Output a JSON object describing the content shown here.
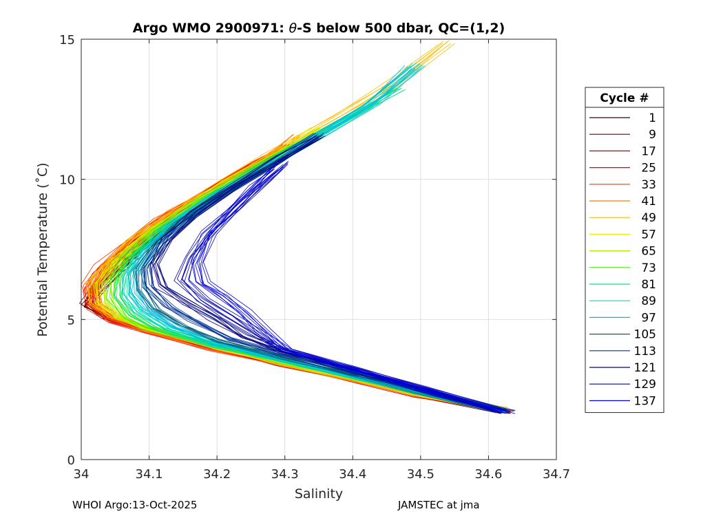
{
  "chart_data": {
    "type": "line",
    "title_prefix": "Argo WMO 2900971: ",
    "title_theta": "θ",
    "title_suffix": "-S below 500 dbar,  QC=(1,2)",
    "xlabel": "Salinity",
    "ylabel": "Potential Temperature (˚C)",
    "xlim": [
      34.0,
      34.7
    ],
    "ylim": [
      0,
      15
    ],
    "xticks": [
      34.0,
      34.1,
      34.2,
      34.3,
      34.4,
      34.5,
      34.6,
      34.7
    ],
    "xtick_labels": [
      "34",
      "34.1",
      "34.2",
      "34.3",
      "34.4",
      "34.5",
      "34.6",
      "34.7"
    ],
    "yticks": [
      0,
      5,
      10,
      15
    ],
    "ytick_labels": [
      "0",
      "5",
      "10",
      "15"
    ],
    "grid": true,
    "legend_title": "Cycle #",
    "legend_position": "right-outside",
    "series": [
      {
        "name": "1",
        "color": "#3a0000",
        "points": [
          [
            34.63,
            1.7
          ],
          [
            34.5,
            2.35
          ],
          [
            34.4,
            2.9
          ],
          [
            34.3,
            3.45
          ],
          [
            34.2,
            4.0
          ],
          [
            34.1,
            4.65
          ],
          [
            34.04,
            5.1
          ],
          [
            34.01,
            5.5
          ],
          [
            34.03,
            6.0
          ],
          [
            34.05,
            6.6
          ],
          [
            34.08,
            7.3
          ],
          [
            34.12,
            8.1
          ],
          [
            34.18,
            9.1
          ],
          [
            34.24,
            10.0
          ],
          [
            34.29,
            10.8
          ]
        ]
      },
      {
        "name": "9",
        "color": "#6a0000",
        "points": [
          [
            34.63,
            1.7
          ],
          [
            34.5,
            2.3
          ],
          [
            34.4,
            2.85
          ],
          [
            34.3,
            3.4
          ],
          [
            34.2,
            3.95
          ],
          [
            34.1,
            4.6
          ],
          [
            34.04,
            5.05
          ],
          [
            34.01,
            5.6
          ],
          [
            34.02,
            6.1
          ],
          [
            34.05,
            6.8
          ],
          [
            34.09,
            7.6
          ],
          [
            34.14,
            8.5
          ],
          [
            34.2,
            9.5
          ],
          [
            34.27,
            10.5
          ],
          [
            34.31,
            11.2
          ]
        ]
      },
      {
        "name": "17",
        "color": "#b40000",
        "points": [
          [
            34.62,
            1.75
          ],
          [
            34.5,
            2.3
          ],
          [
            34.4,
            2.85
          ],
          [
            34.3,
            3.4
          ],
          [
            34.2,
            3.95
          ],
          [
            34.1,
            4.6
          ],
          [
            34.05,
            5.0
          ],
          [
            34.02,
            5.5
          ],
          [
            34.02,
            6.1
          ],
          [
            34.04,
            6.7
          ],
          [
            34.07,
            7.5
          ],
          [
            34.12,
            8.4
          ],
          [
            34.19,
            9.5
          ],
          [
            34.26,
            10.5
          ],
          [
            34.3,
            11.0
          ]
        ]
      },
      {
        "name": "25",
        "color": "#e00000",
        "points": [
          [
            34.62,
            1.75
          ],
          [
            34.5,
            2.28
          ],
          [
            34.4,
            2.83
          ],
          [
            34.3,
            3.38
          ],
          [
            34.2,
            3.93
          ],
          [
            34.1,
            4.58
          ],
          [
            34.05,
            4.95
          ],
          [
            34.02,
            5.4
          ],
          [
            34.01,
            6.0
          ],
          [
            34.03,
            6.6
          ],
          [
            34.06,
            7.4
          ],
          [
            34.11,
            8.3
          ],
          [
            34.18,
            9.4
          ],
          [
            34.25,
            10.4
          ],
          [
            34.3,
            11.1
          ]
        ]
      },
      {
        "name": "33",
        "color": "#ff3300",
        "points": [
          [
            34.62,
            1.8
          ],
          [
            34.5,
            2.3
          ],
          [
            34.4,
            2.85
          ],
          [
            34.3,
            3.4
          ],
          [
            34.2,
            3.95
          ],
          [
            34.1,
            4.6
          ],
          [
            34.05,
            5.0
          ],
          [
            34.02,
            5.5
          ],
          [
            34.01,
            6.2
          ],
          [
            34.03,
            6.9
          ],
          [
            34.07,
            7.7
          ],
          [
            34.12,
            8.6
          ],
          [
            34.19,
            9.6
          ],
          [
            34.26,
            10.6
          ],
          [
            34.31,
            11.3
          ]
        ]
      },
      {
        "name": "41",
        "color": "#ff7700",
        "points": [
          [
            34.62,
            1.8
          ],
          [
            34.5,
            2.32
          ],
          [
            34.4,
            2.87
          ],
          [
            34.3,
            3.42
          ],
          [
            34.2,
            3.97
          ],
          [
            34.1,
            4.62
          ],
          [
            34.05,
            5.0
          ],
          [
            34.02,
            5.5
          ],
          [
            34.02,
            6.2
          ],
          [
            34.04,
            6.9
          ],
          [
            34.08,
            7.8
          ],
          [
            34.14,
            8.8
          ],
          [
            34.21,
            9.8
          ],
          [
            34.28,
            10.8
          ],
          [
            34.32,
            11.6
          ]
        ]
      },
      {
        "name": "49",
        "color": "#ffbb00",
        "points": [
          [
            34.62,
            1.8
          ],
          [
            34.5,
            2.35
          ],
          [
            34.4,
            2.9
          ],
          [
            34.3,
            3.45
          ],
          [
            34.2,
            4.0
          ],
          [
            34.1,
            4.65
          ],
          [
            34.05,
            5.05
          ],
          [
            34.02,
            5.6
          ],
          [
            34.02,
            6.3
          ],
          [
            34.04,
            7.0
          ],
          [
            34.08,
            7.9
          ],
          [
            34.14,
            8.9
          ],
          [
            34.21,
            9.9
          ],
          [
            34.28,
            10.9
          ],
          [
            34.38,
            12.2
          ],
          [
            34.46,
            13.4
          ],
          [
            34.54,
            14.9
          ]
        ]
      },
      {
        "name": "57",
        "color": "#eeee00",
        "points": [
          [
            34.62,
            1.8
          ],
          [
            34.5,
            2.35
          ],
          [
            34.4,
            2.9
          ],
          [
            34.3,
            3.45
          ],
          [
            34.2,
            4.0
          ],
          [
            34.1,
            4.65
          ],
          [
            34.06,
            5.05
          ],
          [
            34.03,
            5.6
          ],
          [
            34.03,
            6.3
          ],
          [
            34.05,
            7.0
          ],
          [
            34.09,
            7.9
          ],
          [
            34.15,
            8.9
          ],
          [
            34.22,
            9.9
          ],
          [
            34.29,
            10.9
          ],
          [
            34.35,
            11.8
          ]
        ]
      },
      {
        "name": "65",
        "color": "#aaee00",
        "points": [
          [
            34.62,
            1.78
          ],
          [
            34.5,
            2.37
          ],
          [
            34.4,
            2.92
          ],
          [
            34.3,
            3.47
          ],
          [
            34.2,
            4.02
          ],
          [
            34.1,
            4.67
          ],
          [
            34.06,
            5.1
          ],
          [
            34.04,
            5.7
          ],
          [
            34.04,
            6.4
          ],
          [
            34.06,
            7.1
          ],
          [
            34.1,
            8.0
          ],
          [
            34.16,
            9.0
          ],
          [
            34.23,
            10.0
          ],
          [
            34.3,
            11.0
          ],
          [
            34.36,
            11.8
          ]
        ]
      },
      {
        "name": "73",
        "color": "#44ee00",
        "points": [
          [
            34.62,
            1.75
          ],
          [
            34.5,
            2.4
          ],
          [
            34.4,
            2.95
          ],
          [
            34.3,
            3.5
          ],
          [
            34.2,
            4.05
          ],
          [
            34.1,
            4.7
          ],
          [
            34.07,
            5.15
          ],
          [
            34.05,
            5.8
          ],
          [
            34.05,
            6.5
          ],
          [
            34.07,
            7.2
          ],
          [
            34.11,
            8.1
          ],
          [
            34.17,
            9.1
          ],
          [
            34.24,
            10.1
          ],
          [
            34.31,
            11.1
          ],
          [
            34.36,
            11.7
          ]
        ]
      },
      {
        "name": "81",
        "color": "#00e080",
        "points": [
          [
            34.62,
            1.75
          ],
          [
            34.5,
            2.4
          ],
          [
            34.4,
            2.96
          ],
          [
            34.3,
            3.52
          ],
          [
            34.2,
            4.08
          ],
          [
            34.12,
            4.65
          ],
          [
            34.08,
            5.2
          ],
          [
            34.06,
            5.8
          ],
          [
            34.06,
            6.5
          ],
          [
            34.08,
            7.3
          ],
          [
            34.12,
            8.2
          ],
          [
            34.18,
            9.2
          ],
          [
            34.25,
            10.2
          ],
          [
            34.32,
            11.2
          ],
          [
            34.4,
            12.3
          ],
          [
            34.47,
            13.2
          ]
        ]
      },
      {
        "name": "89",
        "color": "#00d8c8",
        "points": [
          [
            34.62,
            1.75
          ],
          [
            34.5,
            2.42
          ],
          [
            34.4,
            2.98
          ],
          [
            34.3,
            3.55
          ],
          [
            34.2,
            4.12
          ],
          [
            34.13,
            4.7
          ],
          [
            34.09,
            5.25
          ],
          [
            34.07,
            5.9
          ],
          [
            34.07,
            6.6
          ],
          [
            34.09,
            7.4
          ],
          [
            34.13,
            8.3
          ],
          [
            34.19,
            9.3
          ],
          [
            34.26,
            10.3
          ],
          [
            34.33,
            11.3
          ],
          [
            34.42,
            12.6
          ],
          [
            34.5,
            14.1
          ]
        ]
      },
      {
        "name": "97",
        "color": "#00b8e0",
        "points": [
          [
            34.62,
            1.72
          ],
          [
            34.5,
            2.43
          ],
          [
            34.4,
            3.0
          ],
          [
            34.3,
            3.58
          ],
          [
            34.2,
            4.15
          ],
          [
            34.14,
            4.75
          ],
          [
            34.1,
            5.3
          ],
          [
            34.08,
            6.0
          ],
          [
            34.08,
            6.7
          ],
          [
            34.1,
            7.5
          ],
          [
            34.14,
            8.4
          ],
          [
            34.2,
            9.4
          ],
          [
            34.27,
            10.4
          ],
          [
            34.34,
            11.4
          ],
          [
            34.43,
            12.7
          ],
          [
            34.49,
            14.0
          ]
        ]
      },
      {
        "name": "105",
        "color": "#006080",
        "points": [
          [
            34.62,
            1.72
          ],
          [
            34.5,
            2.45
          ],
          [
            34.4,
            3.05
          ],
          [
            34.3,
            3.65
          ],
          [
            34.2,
            4.25
          ],
          [
            34.15,
            4.8
          ],
          [
            34.11,
            5.4
          ],
          [
            34.09,
            6.1
          ],
          [
            34.09,
            6.8
          ],
          [
            34.11,
            7.6
          ],
          [
            34.15,
            8.5
          ],
          [
            34.21,
            9.5
          ],
          [
            34.28,
            10.5
          ],
          [
            34.35,
            11.5
          ]
        ]
      },
      {
        "name": "113",
        "color": "#003090",
        "points": [
          [
            34.62,
            1.72
          ],
          [
            34.5,
            2.5
          ],
          [
            34.4,
            3.1
          ],
          [
            34.3,
            3.75
          ],
          [
            34.22,
            4.3
          ],
          [
            34.17,
            4.9
          ],
          [
            34.13,
            5.5
          ],
          [
            34.1,
            6.2
          ],
          [
            34.1,
            6.9
          ],
          [
            34.12,
            7.7
          ],
          [
            34.16,
            8.6
          ],
          [
            34.22,
            9.6
          ],
          [
            34.29,
            10.6
          ],
          [
            34.35,
            11.6
          ]
        ]
      },
      {
        "name": "121",
        "color": "#000080",
        "points": [
          [
            34.62,
            1.72
          ],
          [
            34.5,
            2.55
          ],
          [
            34.4,
            3.2
          ],
          [
            34.3,
            3.85
          ],
          [
            34.24,
            4.4
          ],
          [
            34.2,
            5.0
          ],
          [
            34.16,
            5.6
          ],
          [
            34.12,
            6.2
          ],
          [
            34.11,
            7.0
          ],
          [
            34.13,
            7.9
          ],
          [
            34.17,
            8.8
          ],
          [
            34.23,
            9.8
          ],
          [
            34.3,
            10.8
          ],
          [
            34.35,
            11.5
          ]
        ]
      },
      {
        "name": "129",
        "color": "#0000a8",
        "points": [
          [
            34.62,
            1.7
          ],
          [
            34.5,
            2.55
          ],
          [
            34.4,
            3.25
          ],
          [
            34.3,
            3.9
          ],
          [
            34.26,
            4.5
          ],
          [
            34.22,
            5.1
          ],
          [
            34.18,
            5.7
          ],
          [
            34.15,
            6.4
          ],
          [
            34.16,
            7.2
          ],
          [
            34.19,
            8.1
          ],
          [
            34.23,
            9.0
          ],
          [
            34.27,
            9.9
          ],
          [
            34.3,
            10.6
          ]
        ]
      },
      {
        "name": "137",
        "color": "#0000dd",
        "points": [
          [
            34.63,
            1.7
          ],
          [
            34.5,
            2.55
          ],
          [
            34.4,
            3.25
          ],
          [
            34.3,
            3.95
          ],
          [
            34.27,
            4.6
          ],
          [
            34.24,
            5.3
          ],
          [
            34.21,
            5.8
          ],
          [
            34.18,
            6.3
          ],
          [
            34.17,
            7.0
          ],
          [
            34.19,
            8.0
          ],
          [
            34.22,
            8.8
          ],
          [
            34.26,
            9.8
          ],
          [
            34.29,
            10.4
          ]
        ]
      }
    ]
  },
  "footer": {
    "left": "WHOI Argo:13-Oct-2025",
    "right": "JAMSTEC at jma"
  }
}
